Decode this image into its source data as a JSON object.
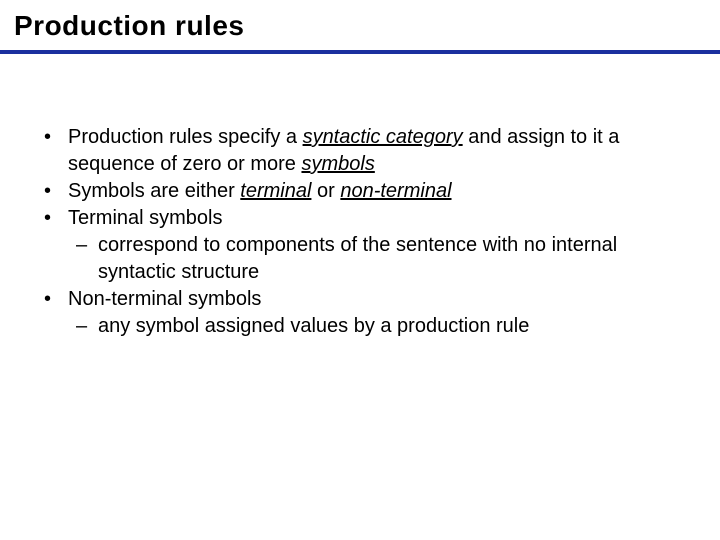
{
  "slide": {
    "title": "Production rules",
    "title_fontsize": 28,
    "title_color": "#000000",
    "divider_color": "#1a2f9e",
    "divider_height": 4,
    "background_color": "#ffffff",
    "body_fontsize": 20,
    "body_color": "#000000",
    "bullets": [
      {
        "runs": [
          {
            "t": "Production rules specify a "
          },
          {
            "t": "syntactic category",
            "underline": true,
            "italic": true
          },
          {
            "t": " and assign to it a sequence of zero or more "
          },
          {
            "t": "symbols",
            "underline": true,
            "italic": true
          }
        ]
      },
      {
        "runs": [
          {
            "t": "Symbols are either "
          },
          {
            "t": "terminal",
            "underline": true,
            "italic": true
          },
          {
            "t": " or "
          },
          {
            "t": "non-terminal",
            "underline": true,
            "italic": true
          }
        ]
      },
      {
        "runs": [
          {
            "t": "Terminal symbols"
          }
        ],
        "sub": [
          {
            "runs": [
              {
                "t": "correspond to components of the sentence with no internal syntactic structure"
              }
            ]
          }
        ]
      },
      {
        "runs": [
          {
            "t": "Non-terminal symbols"
          }
        ],
        "sub": [
          {
            "runs": [
              {
                "t": "any symbol assigned values by  a production rule"
              }
            ]
          }
        ]
      }
    ]
  }
}
